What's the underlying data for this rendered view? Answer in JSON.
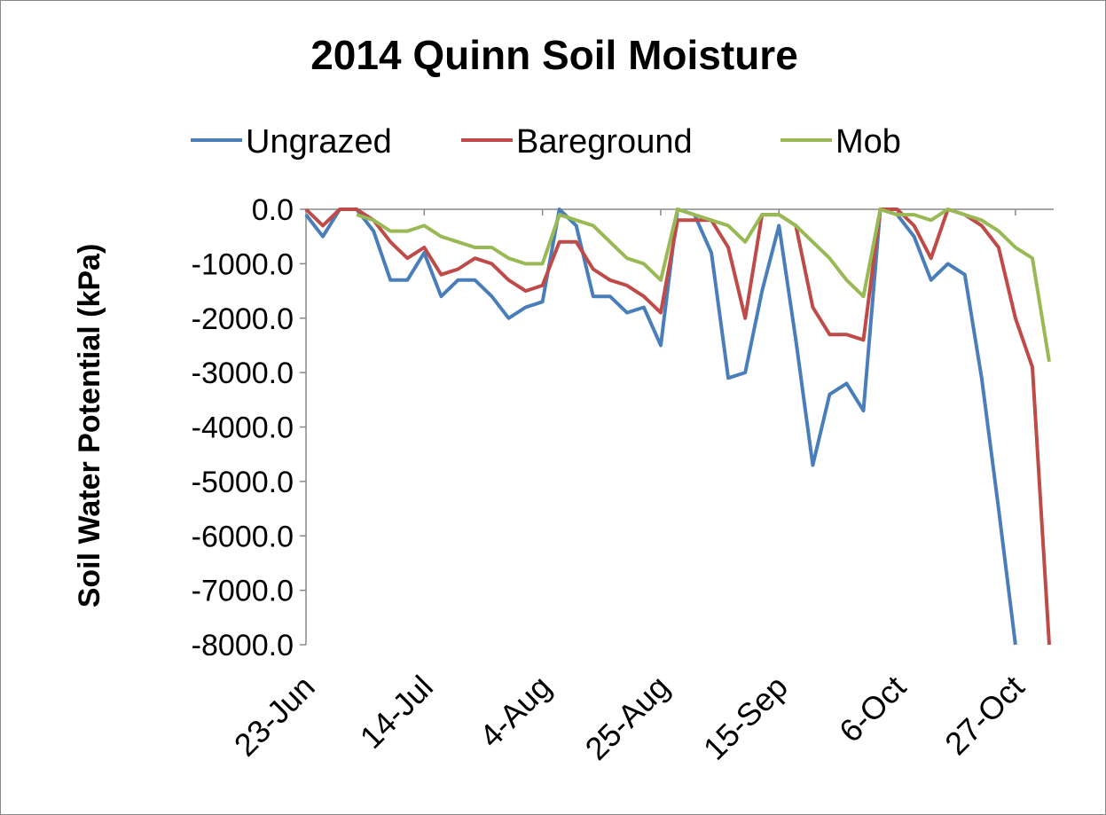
{
  "chart_data": {
    "type": "line",
    "title": "2014 Quinn Soil Moisture",
    "y_label": "Soil Water Potential (kPa)",
    "categories": [
      "23-Jun",
      null,
      null,
      null,
      null,
      null,
      null,
      "14-Jul",
      null,
      null,
      null,
      null,
      null,
      null,
      "4-Aug",
      null,
      null,
      null,
      null,
      null,
      null,
      "25-Aug",
      null,
      null,
      null,
      null,
      null,
      null,
      "15-Sep",
      null,
      null,
      null,
      null,
      null,
      null,
      "6-Oct",
      null,
      null,
      null,
      null,
      null,
      null,
      "27-Oct",
      null,
      null
    ],
    "series": [
      {
        "name": "Ungrazed",
        "color": "#4a7ebb",
        "values": [
          -100,
          -500,
          0,
          0,
          -400,
          -1300,
          -1300,
          -800,
          -1600,
          -1300,
          -1300,
          -1600,
          -2000,
          -1800,
          -1700,
          0,
          -300,
          -1600,
          -1600,
          -1900,
          -1800,
          -2500,
          0,
          -100,
          -800,
          -3100,
          -3000,
          -1500,
          -300,
          -2400,
          -4700,
          -3400,
          -3200,
          -3700,
          0,
          -100,
          -500,
          -1300,
          -1000,
          -1200,
          -3100,
          -5500,
          -8000,
          null,
          null
        ]
      },
      {
        "name": "Bareground",
        "color": "#be4b48",
        "values": [
          0,
          -300,
          0,
          0,
          -200,
          -600,
          -900,
          -700,
          -1200,
          -1100,
          -900,
          -1000,
          -1300,
          -1500,
          -1400,
          -600,
          -600,
          -1100,
          -1300,
          -1400,
          -1600,
          -1900,
          -200,
          -200,
          -200,
          -700,
          -2000,
          -100,
          -100,
          -300,
          -1800,
          -2300,
          -2300,
          -2400,
          0,
          0,
          -300,
          -900,
          0,
          -100,
          -300,
          -700,
          -2000,
          -2900,
          -8000
        ]
      },
      {
        "name": "Mob",
        "color": "#98b954",
        "values": [
          null,
          null,
          null,
          -100,
          -200,
          -400,
          -400,
          -300,
          -500,
          -600,
          -700,
          -700,
          -900,
          -1000,
          -1000,
          -100,
          -200,
          -300,
          -600,
          -900,
          -1000,
          -1300,
          0,
          -100,
          -200,
          -300,
          -600,
          -100,
          -100,
          -300,
          -600,
          -900,
          -1300,
          -1600,
          0,
          -100,
          -100,
          -200,
          0,
          -100,
          -200,
          -400,
          -700,
          -900,
          -2800
        ]
      }
    ],
    "ylim": [
      -8000,
      0
    ],
    "yticks": [
      {
        "value": 0,
        "label": "0.0"
      },
      {
        "value": -1000,
        "label": "-1000.0"
      },
      {
        "value": -2000,
        "label": "-2000.0"
      },
      {
        "value": -3000,
        "label": "-3000.0"
      },
      {
        "value": -4000,
        "label": "-4000.0"
      },
      {
        "value": -5000,
        "label": "-5000.0"
      },
      {
        "value": -6000,
        "label": "-6000.0"
      },
      {
        "value": -7000,
        "label": "-7000.0"
      },
      {
        "value": -8000,
        "label": "-8000.0"
      }
    ],
    "legend": "top"
  }
}
